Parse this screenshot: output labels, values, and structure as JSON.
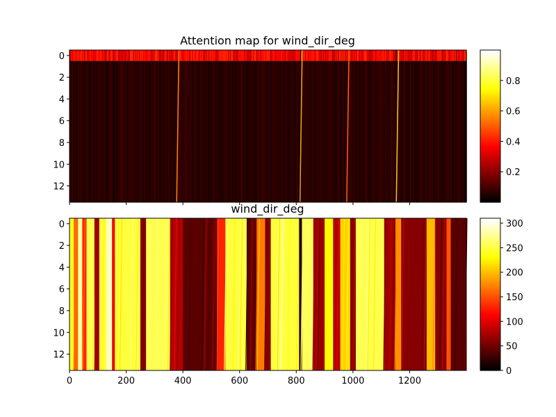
{
  "chart_data": [
    {
      "type": "heatmap",
      "title": "Attention map for wind_dir_deg",
      "colormap": "hot",
      "x_range": [
        0,
        1400
      ],
      "x_ticks": [
        0,
        200,
        400,
        600,
        800,
        1000,
        1200
      ],
      "x_tick_labels_shown": false,
      "y_range": [
        13.5,
        -0.5
      ],
      "y_ticks": [
        0,
        2,
        4,
        6,
        8,
        10,
        12
      ],
      "rows": 14,
      "color_range": [
        0.0,
        1.0
      ],
      "colorbar_ticks": [
        0.2,
        0.4,
        0.6,
        0.8
      ],
      "typical_values": {
        "row_0": 0.35,
        "rows_1_to_13": 0.06
      },
      "attention_spikes": [
        {
          "x": 380,
          "value": 0.55
        },
        {
          "x": 815,
          "value": 0.6
        },
        {
          "x": 980,
          "value": 0.5
        },
        {
          "x": 1155,
          "value": 0.65
        }
      ],
      "low_value_lines": [
        {
          "x": 810,
          "value": 0.0
        },
        {
          "x": 1148,
          "value": 0.02
        }
      ]
    },
    {
      "type": "heatmap",
      "title": "wind_dir_deg",
      "colormap": "hot",
      "x_range": [
        0,
        1400
      ],
      "x_ticks": [
        0,
        200,
        400,
        600,
        800,
        1000,
        1200
      ],
      "y_range": [
        13.5,
        -0.5
      ],
      "y_ticks": [
        0,
        2,
        4,
        6,
        8,
        10,
        12
      ],
      "rows": 14,
      "color_range": [
        0,
        310
      ],
      "colorbar_ticks": [
        0,
        50,
        100,
        150,
        200,
        250,
        300
      ],
      "segments": [
        {
          "x_start": 0,
          "x_end": 15,
          "value": 240
        },
        {
          "x_start": 15,
          "x_end": 30,
          "value": 160
        },
        {
          "x_start": 30,
          "x_end": 45,
          "value": 280
        },
        {
          "x_start": 45,
          "x_end": 60,
          "value": 130
        },
        {
          "x_start": 60,
          "x_end": 88,
          "value": 255
        },
        {
          "x_start": 88,
          "x_end": 105,
          "value": 70
        },
        {
          "x_start": 105,
          "x_end": 130,
          "value": 250
        },
        {
          "x_start": 130,
          "x_end": 150,
          "value": 290
        },
        {
          "x_start": 150,
          "x_end": 160,
          "value": 110
        },
        {
          "x_start": 160,
          "x_end": 250,
          "value": 250
        },
        {
          "x_start": 250,
          "x_end": 270,
          "value": 60
        },
        {
          "x_start": 270,
          "x_end": 355,
          "value": 255
        },
        {
          "x_start": 355,
          "x_end": 400,
          "value": 80
        },
        {
          "x_start": 400,
          "x_end": 520,
          "value": 40
        },
        {
          "x_start": 520,
          "x_end": 550,
          "value": 130
        },
        {
          "x_start": 550,
          "x_end": 625,
          "value": 250
        },
        {
          "x_start": 625,
          "x_end": 660,
          "value": 40
        },
        {
          "x_start": 660,
          "x_end": 690,
          "value": 170
        },
        {
          "x_start": 690,
          "x_end": 710,
          "value": 60
        },
        {
          "x_start": 710,
          "x_end": 810,
          "value": 250
        },
        {
          "x_start": 810,
          "x_end": 820,
          "value": 10
        },
        {
          "x_start": 820,
          "x_end": 860,
          "value": 260
        },
        {
          "x_start": 860,
          "x_end": 900,
          "value": 70
        },
        {
          "x_start": 900,
          "x_end": 930,
          "value": 230
        },
        {
          "x_start": 930,
          "x_end": 955,
          "value": 80
        },
        {
          "x_start": 955,
          "x_end": 990,
          "value": 210
        },
        {
          "x_start": 990,
          "x_end": 1010,
          "value": 60
        },
        {
          "x_start": 1010,
          "x_end": 1110,
          "value": 255
        },
        {
          "x_start": 1110,
          "x_end": 1150,
          "value": 70
        },
        {
          "x_start": 1150,
          "x_end": 1170,
          "value": 180
        },
        {
          "x_start": 1170,
          "x_end": 1260,
          "value": 60
        },
        {
          "x_start": 1260,
          "x_end": 1290,
          "value": 200
        },
        {
          "x_start": 1290,
          "x_end": 1330,
          "value": 60
        },
        {
          "x_start": 1330,
          "x_end": 1345,
          "value": 150
        },
        {
          "x_start": 1345,
          "x_end": 1400,
          "value": 40
        }
      ]
    }
  ]
}
